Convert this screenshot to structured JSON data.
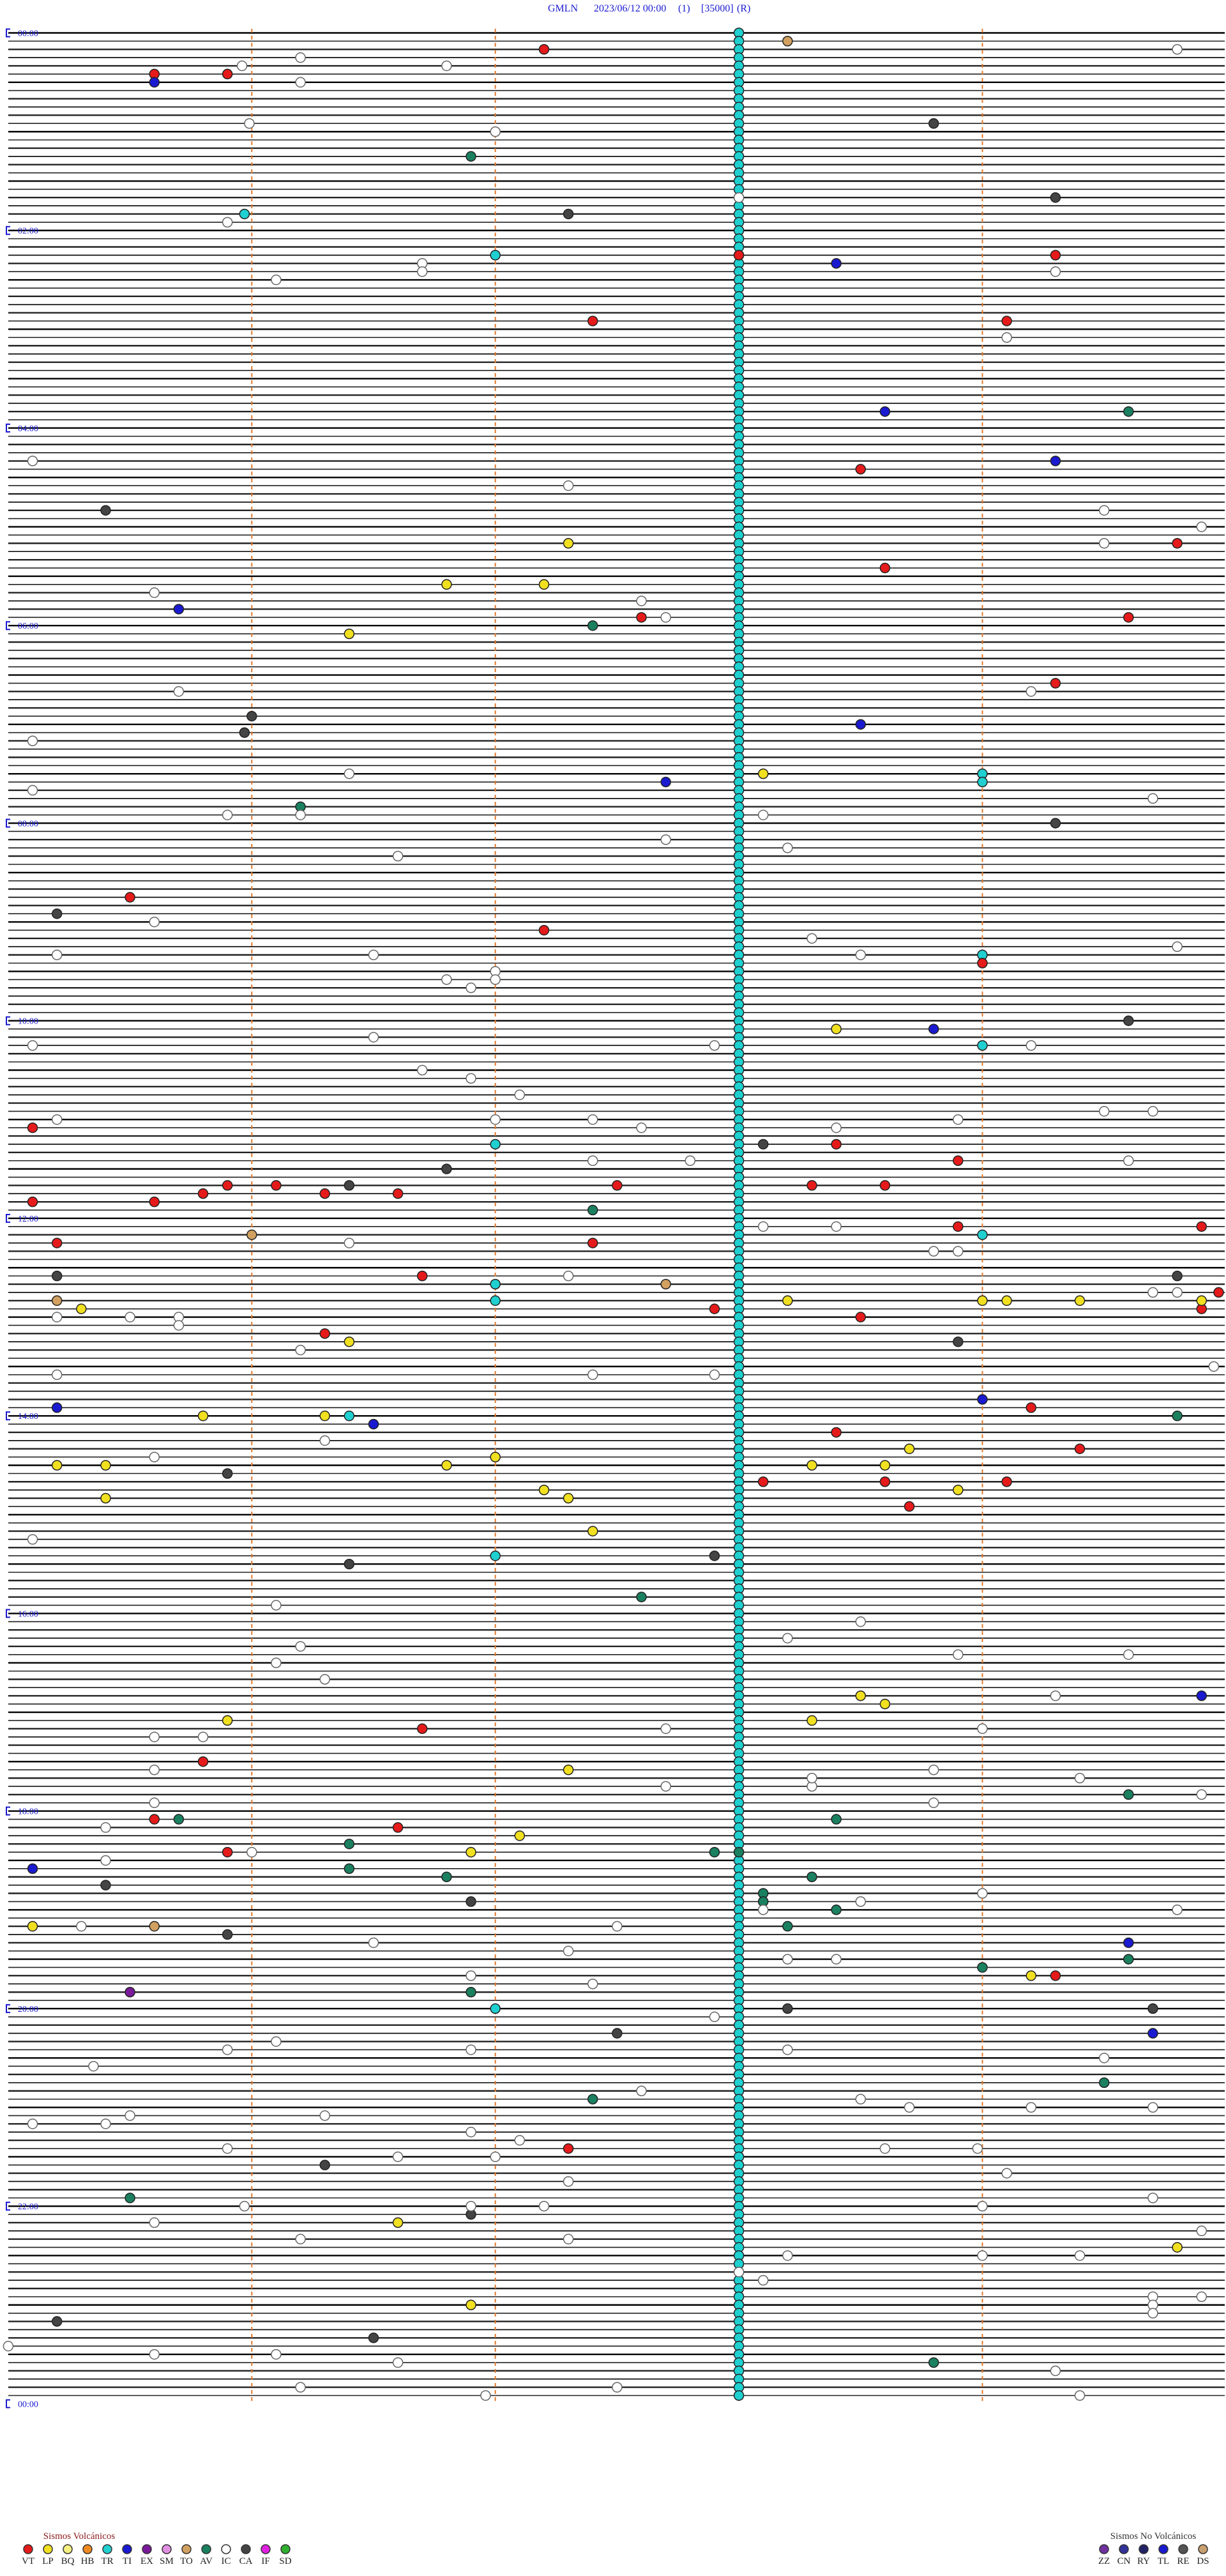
{
  "header": {
    "station": "GMLN",
    "datetime": "2023/06/12 00:00",
    "channel": "(1)",
    "scale": "[35000]",
    "mode": "(R)"
  },
  "time_labels": [
    "00:00",
    "02:00",
    "04:00",
    "06:00",
    "08:00",
    "10:00",
    "12:00",
    "14:00",
    "16:00",
    "18:00",
    "20:00",
    "22:00",
    "00:00"
  ],
  "legend": {
    "volcanic": {
      "title": "Sismos Volcánicos",
      "items": [
        {
          "code": "VT",
          "color": "#e51a1a"
        },
        {
          "code": "LP",
          "color": "#f0e020"
        },
        {
          "code": "BQ",
          "color": "#f5f080"
        },
        {
          "code": "HB",
          "color": "#f08a20"
        },
        {
          "code": "TR",
          "color": "#20d0d0"
        },
        {
          "code": "TI",
          "color": "#1a1ad0"
        },
        {
          "code": "EX",
          "color": "#7a1a9a"
        },
        {
          "code": "SM",
          "color": "#e090e0"
        },
        {
          "code": "TO",
          "color": "#d2a060"
        },
        {
          "code": "AV",
          "color": "#1a8060"
        },
        {
          "code": "IC",
          "color": "#ffffff"
        },
        {
          "code": "CA",
          "color": "#444444"
        },
        {
          "code": "IF",
          "color": "#e020e0"
        },
        {
          "code": "SD",
          "color": "#30b030"
        }
      ]
    },
    "non_volcanic": {
      "title": "Sismos No Volcánicos",
      "items": [
        {
          "code": "ZZ",
          "color": "#7030a0"
        },
        {
          "code": "CN",
          "color": "#333399"
        },
        {
          "code": "RY",
          "color": "#222266"
        },
        {
          "code": "TL",
          "color": "#1a1ad0"
        },
        {
          "code": "RE",
          "color": "#555555"
        },
        {
          "code": "DS",
          "color": "#c8a070"
        }
      ]
    }
  },
  "events": [
    {
      "type": "TR",
      "minutes": [
        3,
        8,
        13,
        18,
        23,
        28,
        33,
        38,
        43,
        48,
        53,
        58,
        63,
        68,
        73,
        78,
        83,
        88,
        93,
        98,
        103,
        108,
        113,
        118,
        123,
        128,
        133,
        138,
        143,
        148,
        153,
        158,
        163,
        168,
        173,
        178,
        183,
        188,
        193,
        198,
        203,
        208,
        213,
        218,
        223,
        228,
        233,
        238,
        243,
        248,
        253,
        258,
        263,
        268,
        273,
        278,
        283,
        288,
        293,
        298,
        303,
        308,
        313,
        318,
        323,
        328,
        333,
        338,
        343,
        348,
        353,
        358,
        363,
        368,
        373,
        378,
        383,
        388,
        393,
        398,
        403,
        408,
        413,
        418,
        423,
        428,
        433,
        438,
        443,
        448,
        453,
        458,
        463,
        468,
        473,
        478,
        483,
        488,
        493,
        498,
        503,
        508,
        513,
        518,
        523,
        528,
        533,
        538,
        543,
        548,
        553,
        558,
        563,
        568,
        573,
        578,
        583,
        588,
        593,
        598,
        603,
        608,
        613,
        618,
        623,
        628,
        633,
        638,
        643,
        648,
        653,
        658,
        663,
        668,
        673,
        678,
        683,
        688,
        693,
        698,
        703,
        708,
        713,
        718,
        723,
        728,
        733,
        738,
        743,
        748,
        753,
        758,
        763,
        768,
        773,
        778,
        783,
        788,
        793,
        798,
        803,
        808,
        813,
        818,
        823,
        828,
        833,
        838,
        843,
        848,
        853,
        858,
        863,
        868,
        873,
        878,
        883,
        888,
        893,
        898,
        903,
        908,
        913,
        918,
        923,
        928,
        933,
        938,
        943,
        948,
        953,
        958,
        963,
        968,
        973,
        978,
        983,
        988,
        993,
        998,
        1003,
        1008,
        1013,
        1018,
        1023,
        1028,
        1033,
        1038,
        1043,
        1048,
        1053,
        1058,
        1063,
        1068,
        1073,
        1078,
        1083,
        1088,
        1093,
        1098,
        1103,
        1108,
        1113,
        1118,
        1123,
        1128,
        1133,
        1138,
        1143,
        1148,
        1153,
        1158,
        1163,
        1168,
        1173,
        1178,
        1183,
        1188,
        1193,
        1198,
        1203,
        1208,
        1213,
        1218,
        1223,
        1228,
        1233,
        1238,
        1243,
        1248,
        1253,
        1258,
        1263,
        1268,
        1273,
        1278,
        1283,
        1288,
        1293,
        1298,
        1303,
        1308,
        1313,
        1318,
        1323,
        1328,
        1333,
        1338,
        1343,
        1348,
        1353,
        1358,
        1363,
        1368,
        1373,
        1378,
        1383,
        1388,
        1393,
        1398,
        1403,
        1408,
        1413,
        1418,
        1423,
        1428,
        1433,
        1438,
        110.97,
        137,
        454,
        459,
        564,
        619,
        677,
        734,
        762,
        772,
        841.4,
        927,
        1202
      ]
    },
    {
      "type": "VT",
      "minutes": [
        12.2,
        25.6,
        25.9,
        177.4,
        138,
        139.3,
        179.1,
        268.5,
        314.8,
        328.6,
        357.6,
        359.6,
        399.3,
        547.2,
        525.5,
        569,
        665.1,
        710.1,
        710.6,
        705.8,
        700.9,
        701.1,
        706.3,
        702.5,
        706.6,
        703.3,
        703.6,
        678.4,
        688.9,
        735.2,
        737.4,
        728.9,
        729.9,
        756.7,
        777.9,
        783.5,
        779.9,
        769.97,
        791.3,
        839.2,
        853.4,
        864.4,
        883.1,
        883.6,
        884.1,
        898.7,
        1031.7,
        1050.8,
        1085.6,
        1091.6,
        1105.9,
        1184.3,
        1287.3
      ]
    },
    {
      "type": "LP",
      "minutes": [
        312.3,
        336.8,
        337.2,
        366.4,
        453.1,
        608.4,
        775.3,
        773.2,
        774,
        774.1,
        774.4,
        774.9,
        796.4,
        840.8,
        841.3,
        867,
        870.2,
        870.4,
        871.8,
        873.3,
        873.6,
        863.7,
        887.2,
        892.3,
        890.4,
        888.9,
        912.4,
        1013.5,
        1018.6,
        1025.9,
        1028.3,
        1057.3,
        1097.1,
        1106.9,
        1150.1,
        1184.2,
        1331.6,
        1381.9,
        1349.8
      ]
    },
    {
      "type": "TI",
      "minutes": [
        30.6,
        143.4,
        233.6,
        264.3,
        350.7,
        423.5,
        457.7,
        608.8,
        834,
        835.2,
        846.5,
        1014.9,
        1115.1,
        1164.6,
        1219.7
      ]
    },
    {
      "type": "AV",
      "minutes": [
        76.9,
        234.6,
        362.4,
        471.2,
        717.4,
        952.6,
        1074.6,
        1088.4,
        1085.7,
        1101.4,
        1116.4,
        1108,
        1107.9,
        1121.8,
        1123.3,
        1133.1,
        1138.1,
        1143.4,
        1153.2,
        1179,
        1174.6,
        1191.9,
        844.8,
        1249.5,
        1257.4,
        1315.5,
        1418.8
      ]
    },
    {
      "type": "CA",
      "minutes": [
        112.3,
        58.8,
        104.3,
        290.4,
        416,
        425.97,
        484.3,
        535.2,
        604.6,
        678.1,
        691.8,
        701.4,
        755.2,
        759.8,
        798.9,
        875.9,
        931.4,
        927.9,
        1125.4,
        1136.9,
        1155.9,
        1203.2,
        1204.7,
        1217.5,
        1296.3,
        1326.9,
        1390.2,
        1401.5
      ]
    },
    {
      "type": "EX",
      "minutes": [
        1190.5
      ]
    },
    {
      "type": "TO",
      "minutes": [
        8.2,
        731,
        770.2,
        762.7,
        1150.6
      ]
    },
    {
      "type": "IC",
      "minutes": [
        20.96,
        16.2,
        21.8,
        31.2,
        55.99,
        62,
        14.8,
        115.9,
        103,
        141.7,
        146.7,
        151.1,
        149.3,
        189.1,
        260.1,
        277.3,
        294.5,
        304.9,
        314.5,
        340.6,
        347.6,
        357.7,
        400.7,
        404.2,
        430.1,
        451.4,
        460.1,
        475.9,
        476.2,
        478.1,
        469.7,
        492.7,
        498.2,
        501.6,
        540.6,
        553.3,
        559.8,
        560.2,
        561.5,
        563.5,
        576.8,
        572,
        581.9,
        577,
        615.1,
        611.5,
        617.9,
        619.2,
        631.7,
        636.9,
        647.1,
        660.2,
        662,
        662.4,
        667.6,
        663.9,
        659.5,
        659.7,
        668.4,
        689.6,
        687.4,
        687.8,
        728.1,
        728.4,
        736.4,
        743.8,
        743.9,
        757.3,
        769.7,
        769.8,
        780.2,
        780.5,
        780.7,
        785.7,
        801.2,
        817.9,
        817.4,
        814.95,
        815.2,
        865.6,
        856.3,
        915.1,
        956.1,
        968.5,
        978.2,
        981.2,
        991.1,
        1001.3,
        988.9,
        989.6,
        1014.3,
        1035.6,
        1035.8,
        1032.7,
        1034,
        1058.8,
        1064.4,
        1055.6,
        1067.7,
        1068.3,
        1063.3,
        1074.9,
        1075.6,
        1090.4,
        1078.8,
        1110.4,
        1106,
        1138.5,
        1143.1,
        1150.3,
        1152.5,
        1134,
        1144.8,
        1161.5,
        1167.3,
        1173.2,
        1173.4,
        1181.9,
        1187.4,
        1207.9,
        1221.1,
        1225.9,
        1226.9,
        1228.2,
        1234.5,
        1235.35,
        1252.6,
        1258.5,
        1263.7,
        1264.7,
        1264.2,
        1266.3,
        1265.5,
        1270.4,
        1270.1,
        1285.9,
        1291.6,
        1292,
        1282.1,
        1276.9,
        1288.6,
        1288.98,
        1304.1,
        1307.3,
        1319.7,
        1320.97,
        1321.9,
        1322.2,
        1324,
        1330.6,
        1339.9,
        1341.2,
        1342.3,
        1353.2,
        1354.4,
        1354,
        1363,
        1368.1,
        1379.7,
        1384.7,
        1389.7,
        1410.6,
        1411.1,
        1416.6,
        1424.3,
        1431.2,
        1432.5,
        1436.96,
        1439.4,
        1405,
        1379.9
      ]
    }
  ]
}
